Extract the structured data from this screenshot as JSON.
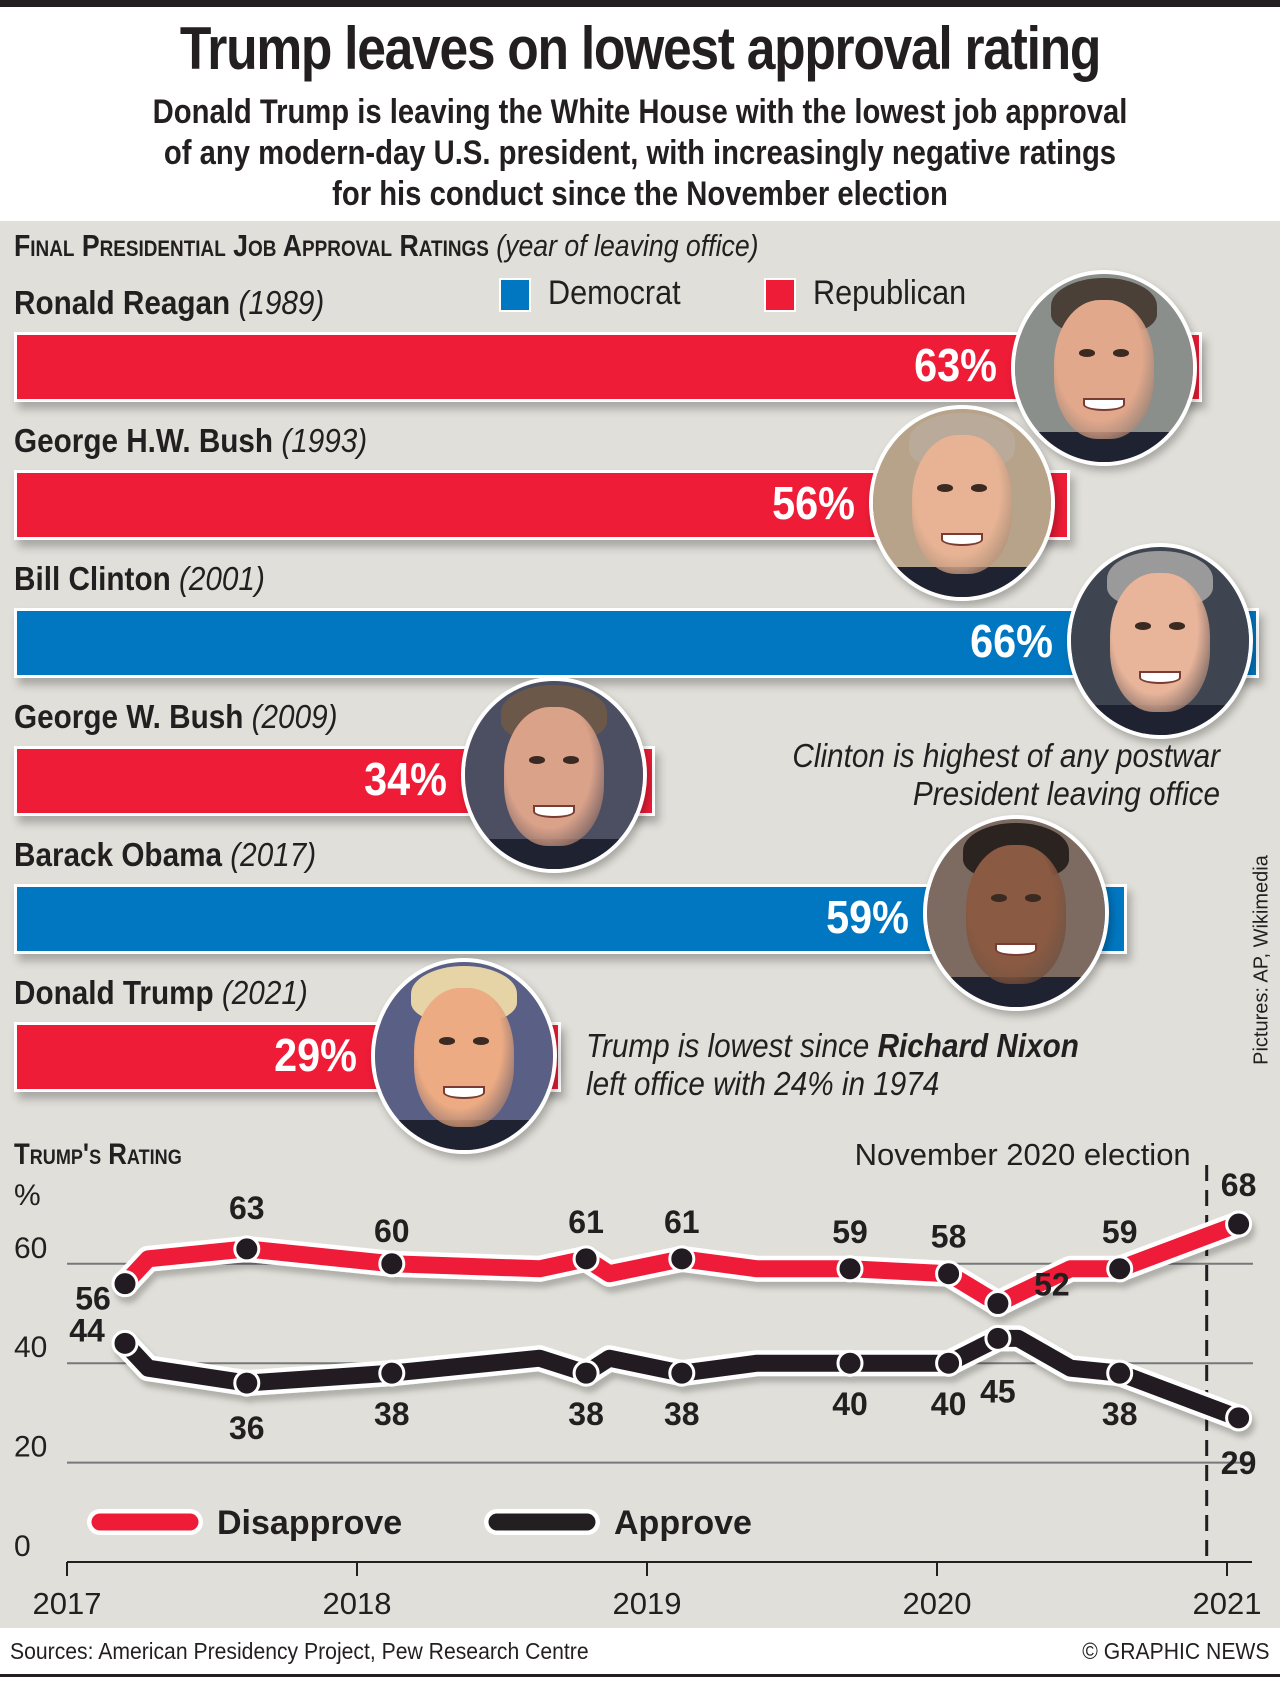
{
  "header": {
    "title": "Trump leaves on lowest approval rating",
    "subtitle_lines": [
      "Donald Trump is leaving the White House with the lowest job approval",
      "of any modern-day U.S. president, with increasingly negative ratings",
      "for his conduct since the November election"
    ]
  },
  "colors": {
    "democrat": "#0077c0",
    "republican": "#ee1c37",
    "approve": "#231f20",
    "disapprove": "#ee1c37",
    "panel": "#e0dfd9"
  },
  "bars_section": {
    "heading": "Final Presidential Job Approval Ratings",
    "heading_note": "(year of leaving office)",
    "legend": [
      {
        "label": "Democrat",
        "party": "democrat"
      },
      {
        "label": "Republican",
        "party": "republican"
      }
    ],
    "annotation_clinton": [
      "Clinton is highest of any postwar",
      "President leaving office"
    ],
    "annotation_trump": {
      "line1_pre": "Trump is lowest since ",
      "line1_bold": "Richard Nixon",
      "line2": "left office with 24% in 1974"
    },
    "credit": "Pictures: AP, Wikimedia"
  },
  "chart_data": [
    {
      "type": "bar",
      "orientation": "horizontal",
      "title": "Final Presidential Job Approval Ratings (year of leaving office)",
      "categories": [
        "Ronald Reagan",
        "George H.W. Bush",
        "Bill Clinton",
        "George W. Bush",
        "Barack Obama",
        "Donald Trump"
      ],
      "years": [
        "(1989)",
        "(1993)",
        "(2001)",
        "(2009)",
        "(2017)",
        "(2021)"
      ],
      "parties": [
        "republican",
        "republican",
        "democrat",
        "republican",
        "democrat",
        "republican"
      ],
      "values": [
        63,
        56,
        66,
        34,
        59,
        29
      ],
      "value_labels": [
        "63%",
        "56%",
        "66%",
        "34%",
        "59%",
        "29%"
      ],
      "unit": "%",
      "legend": [
        "Democrat",
        "Republican"
      ],
      "legend_position": "top"
    },
    {
      "type": "line",
      "title": "Trump's Rating",
      "ylabel": "%",
      "ylim": [
        0,
        70
      ],
      "yticks": [
        0,
        20,
        40,
        60
      ],
      "ytick_labels": [
        "0",
        "20",
        "40",
        "60"
      ],
      "xlim": [
        2017,
        2021.1
      ],
      "xticks": [
        2017,
        2018,
        2019,
        2020,
        2021
      ],
      "xtick_labels": [
        "2017",
        "2018",
        "2019",
        "2020",
        "2021"
      ],
      "grid": true,
      "annotation": {
        "label": "November 2020 election",
        "x": 2020.93,
        "style": "dashed-vertical"
      },
      "legend": [
        "Disapprove",
        "Approve"
      ],
      "legend_position": "bottom-left",
      "x": [
        2017.2,
        2017.28,
        2017.62,
        2018.12,
        2018.63,
        2018.79,
        2018.87,
        2019.12,
        2019.38,
        2019.7,
        2020.04,
        2020.21,
        2020.28,
        2020.46,
        2020.63,
        2021.04
      ],
      "series": [
        {
          "name": "Disapprove",
          "color": "#ee1c37",
          "values": [
            56,
            61,
            63,
            60,
            59,
            61,
            58,
            61,
            59,
            59,
            58,
            52,
            54,
            59,
            59,
            68
          ],
          "marked": [
            true,
            false,
            true,
            true,
            false,
            true,
            false,
            true,
            false,
            true,
            true,
            true,
            false,
            false,
            true,
            true
          ],
          "labels": [
            "56",
            "",
            "63",
            "60",
            "",
            "61",
            "",
            "61",
            "",
            "59",
            "58",
            "52",
            "",
            "",
            "59",
            "68"
          ]
        },
        {
          "name": "Approve",
          "color": "#231f20",
          "values": [
            44,
            39,
            36,
            38,
            41,
            38,
            41,
            38,
            40,
            40,
            40,
            45,
            45,
            39,
            38,
            29
          ],
          "marked": [
            true,
            false,
            true,
            true,
            false,
            true,
            false,
            true,
            false,
            true,
            true,
            true,
            false,
            false,
            true,
            true
          ],
          "labels": [
            "44",
            "",
            "36",
            "38",
            "",
            "38",
            "",
            "38",
            "",
            "40",
            "40",
            "45",
            "",
            "",
            "38",
            "29"
          ]
        }
      ]
    }
  ],
  "footer": {
    "sources": "Sources: American Presidency Project, Pew Research Centre",
    "copyright": "© GRAPHIC NEWS"
  }
}
